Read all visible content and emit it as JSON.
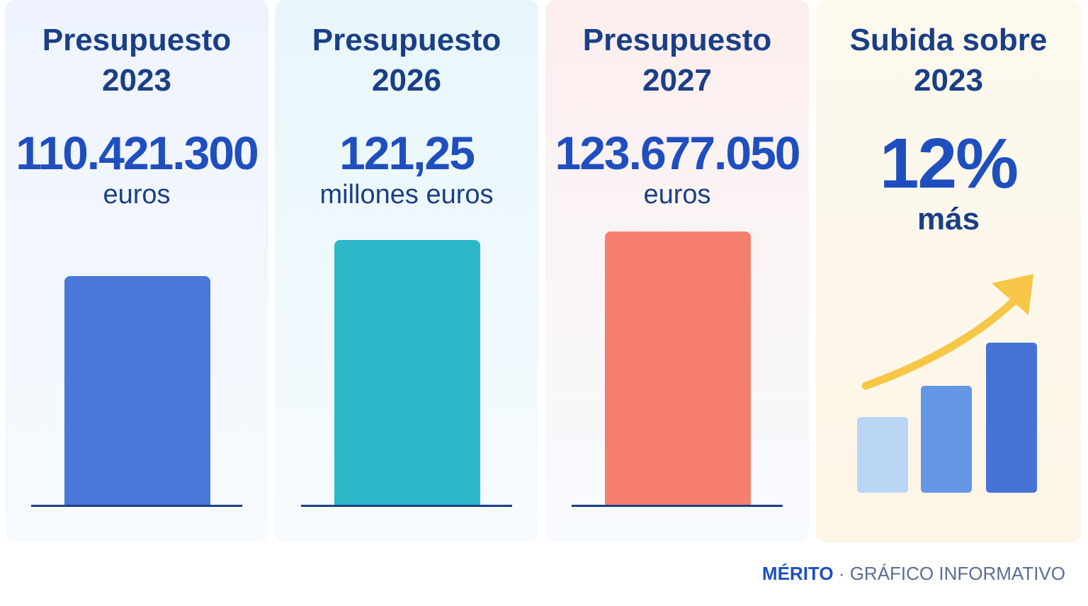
{
  "chart_data": {
    "type": "bar",
    "categories": [
      "Presupuesto 2023",
      "Presupuesto 2026",
      "Presupuesto 2027"
    ],
    "values": [
      110421300,
      121250000,
      123677050
    ],
    "colors": [
      "#4a77d8",
      "#2db8c9",
      "#f57f6c"
    ]
  },
  "panels": [
    {
      "title": "Presupuesto\n2023",
      "value": "110.421.300",
      "unit": "euros",
      "background": "#eef3fd"
    },
    {
      "title": "Presupuesto\n2026",
      "value": "121,25",
      "unit": "millones euros",
      "background": "#e8f6fb"
    },
    {
      "title": "Presupuesto\n2027",
      "value": "123.677.050",
      "unit": "euros",
      "background": "#fdeeed"
    }
  ],
  "summary": {
    "title": "Subida sobre\n2023",
    "value": "12%",
    "unit": "más",
    "background": "#fdf6e6",
    "arrow_color": "#f7c646",
    "bar_colors": [
      "#b9d6f4",
      "#6795e6",
      "#4674d6"
    ],
    "icons": [
      "trend-arrow-icon",
      "growth-bars-icon"
    ]
  },
  "footer": {
    "brand": "MÉRITO",
    "separator": "·",
    "text": "GRÁFICO INFORMATIVO"
  }
}
